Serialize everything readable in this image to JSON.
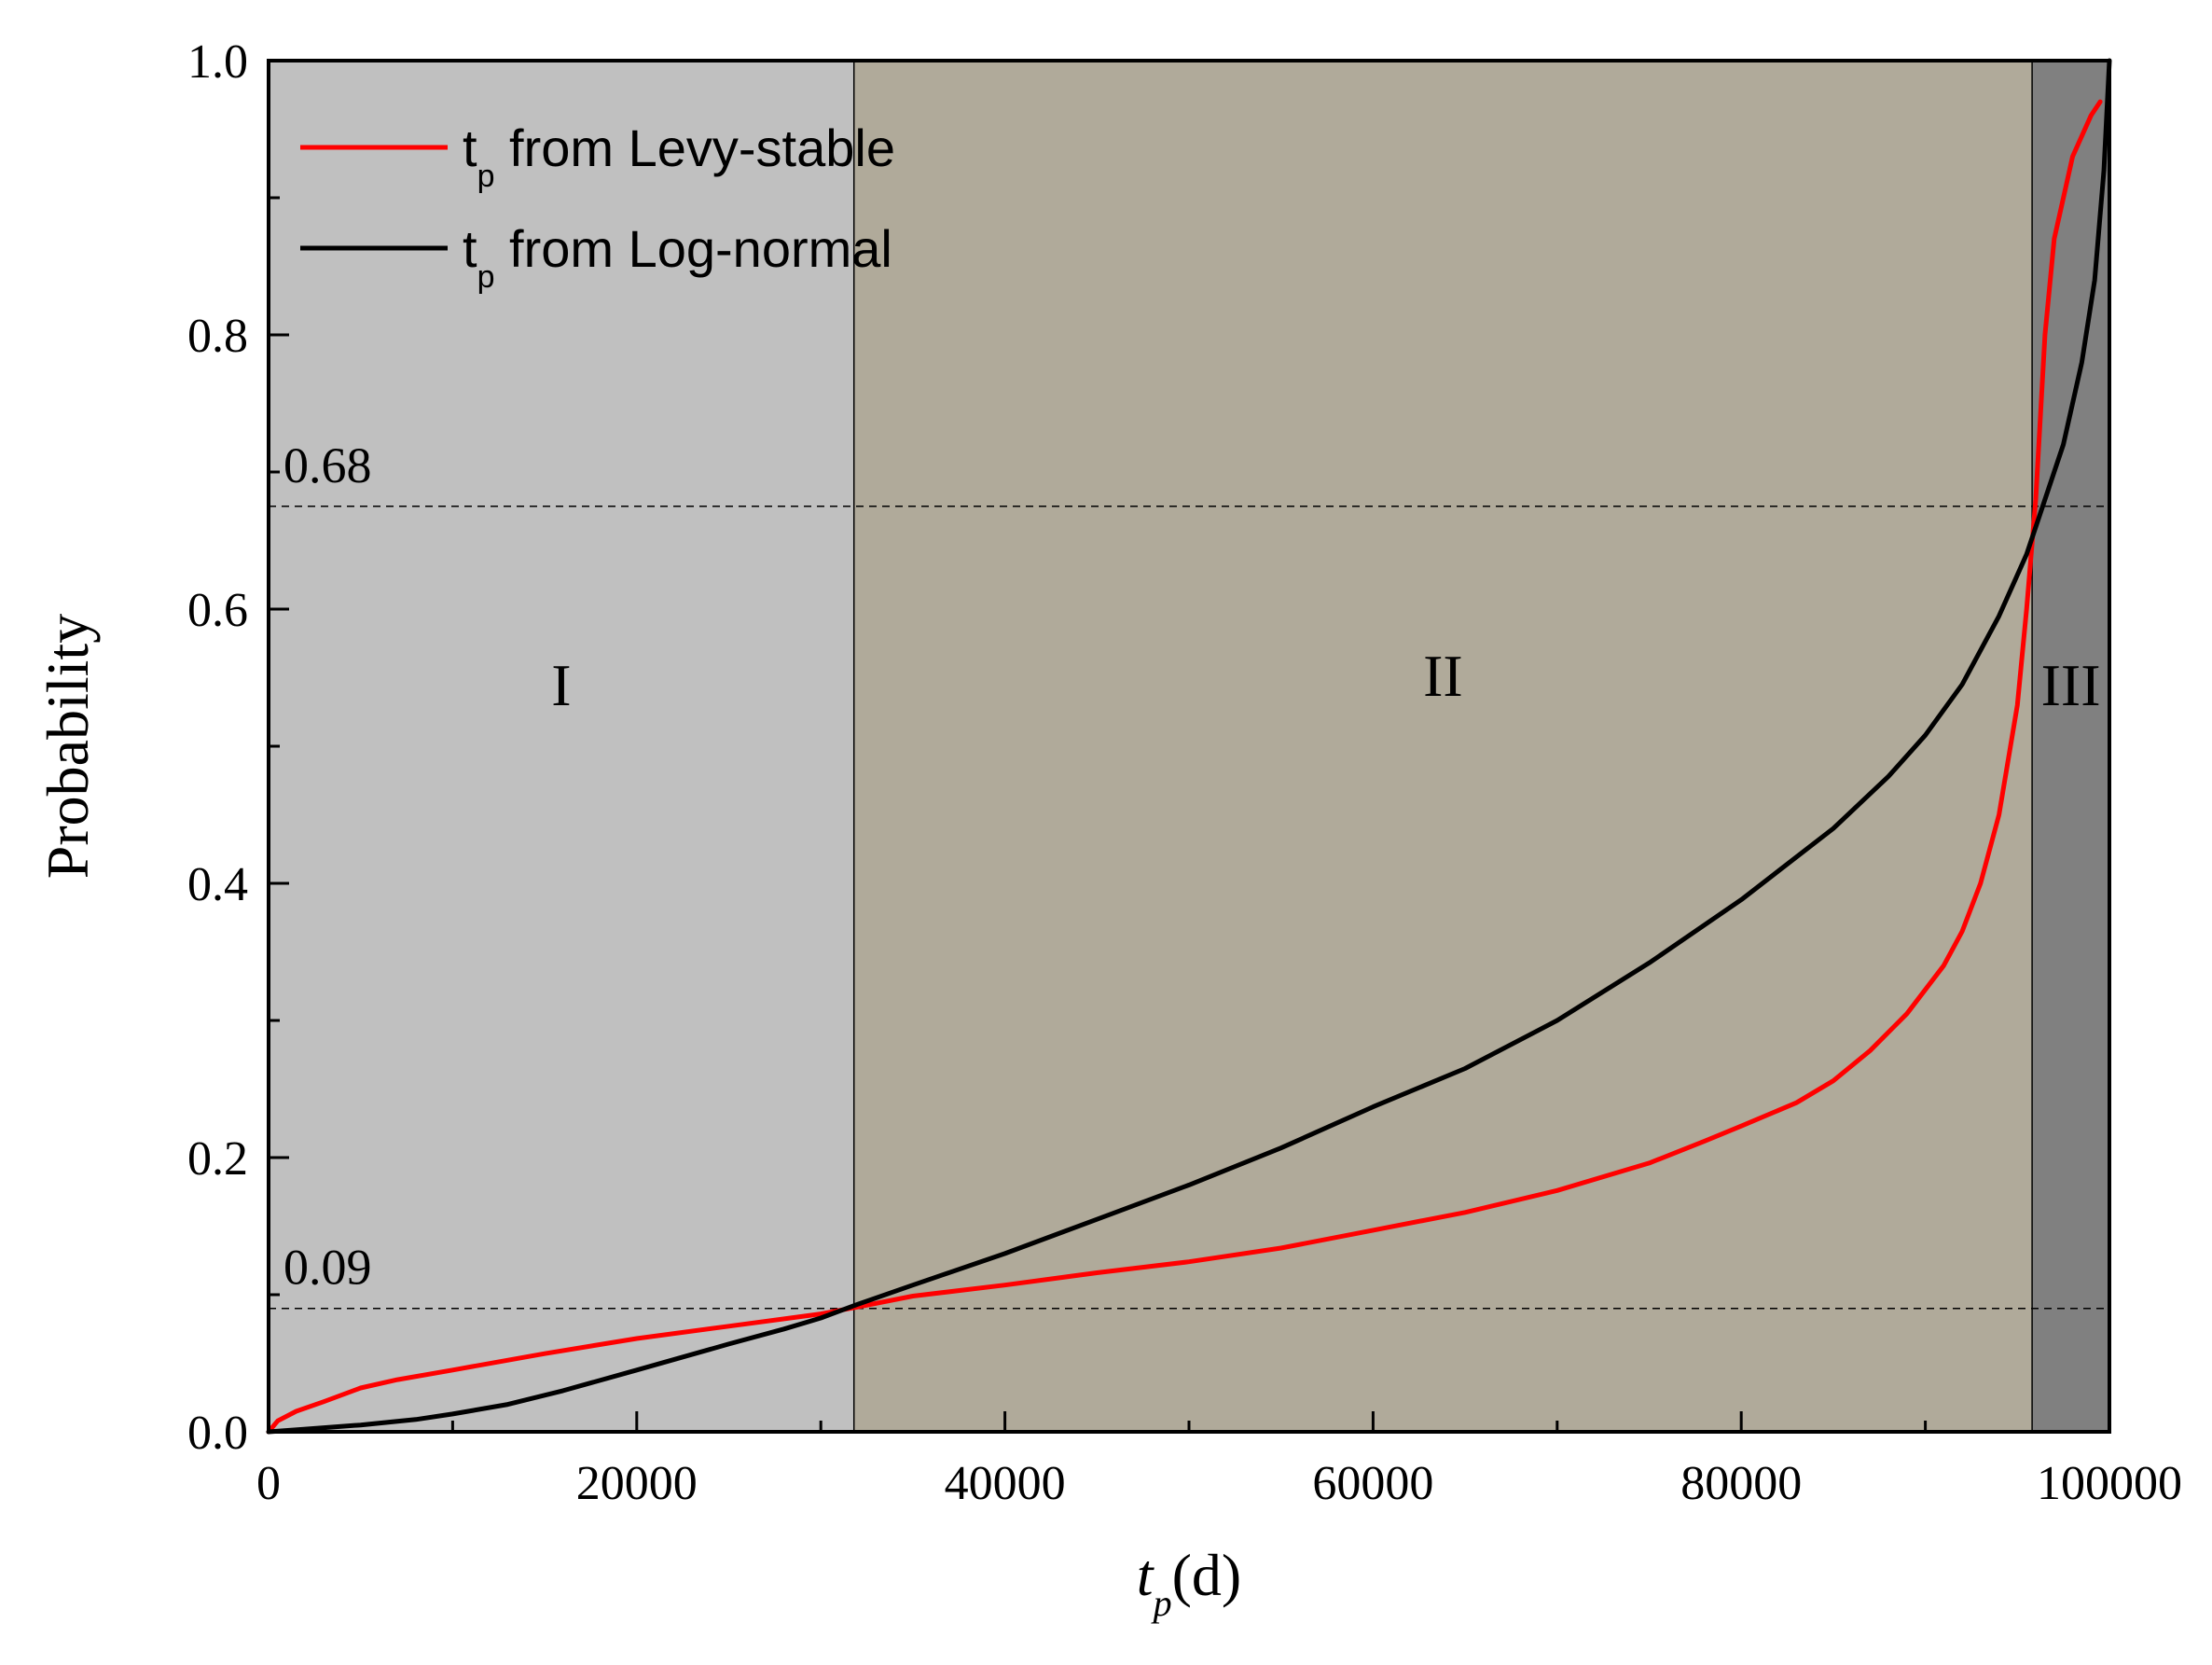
{
  "chart_data": {
    "type": "line",
    "xlabel": {
      "main": "t",
      "sub": "p",
      "suffix": "(d)"
    },
    "ylabel": "Probability",
    "xlim": [
      0,
      100000
    ],
    "ylim": [
      0,
      1.0
    ],
    "x_ticks": [
      0,
      20000,
      40000,
      60000,
      80000,
      100000
    ],
    "x_tick_labels": [
      "0",
      "20000",
      "40000",
      "60000",
      "80000",
      "100000"
    ],
    "y_ticks": [
      0,
      0.2,
      0.4,
      0.6,
      0.8,
      1.0
    ],
    "y_tick_labels": [
      "0.0",
      "0.2",
      "0.4",
      "0.6",
      "0.8",
      "1.0"
    ],
    "grid": false,
    "legend_position": "top-left",
    "regions": [
      {
        "label": "I",
        "x_start": 0,
        "x_end": 31800,
        "color": "#c0c0c0"
      },
      {
        "label": "II",
        "x_start": 31800,
        "x_end": 95800,
        "color": "#b0aa9a"
      },
      {
        "label": "III",
        "x_start": 95800,
        "x_end": 100000,
        "color": "#808080"
      }
    ],
    "reference_lines": [
      {
        "label": "0.68",
        "y": 0.675
      },
      {
        "label": "0.09",
        "y": 0.09
      }
    ],
    "series": [
      {
        "name": {
          "main": "t",
          "sub": "p",
          "suffix": " from Levy-stable"
        },
        "color": "#ff0000",
        "x": [
          0,
          500,
          1500,
          3000,
          5000,
          7000,
          10000,
          15000,
          20000,
          25000,
          30000,
          32000,
          35000,
          40000,
          45000,
          50000,
          55000,
          60000,
          65000,
          70000,
          75000,
          78000,
          80000,
          83000,
          85000,
          87000,
          89000,
          91000,
          92000,
          93000,
          94000,
          95000,
          95500,
          96000,
          96500,
          97000,
          98000,
          99000,
          99500
        ],
        "y": [
          0.0,
          0.008,
          0.015,
          0.022,
          0.032,
          0.038,
          0.045,
          0.057,
          0.068,
          0.077,
          0.086,
          0.091,
          0.099,
          0.107,
          0.116,
          0.124,
          0.134,
          0.147,
          0.16,
          0.176,
          0.196,
          0.212,
          0.223,
          0.24,
          0.256,
          0.278,
          0.305,
          0.34,
          0.365,
          0.4,
          0.45,
          0.53,
          0.6,
          0.68,
          0.8,
          0.87,
          0.93,
          0.96,
          0.97
        ]
      },
      {
        "name": {
          "main": "t",
          "sub": "p",
          "suffix": " from Log-normal"
        },
        "color": "#000000",
        "x": [
          0,
          2000,
          5000,
          8000,
          10000,
          13000,
          16000,
          20000,
          25000,
          28000,
          30000,
          32000,
          35000,
          40000,
          45000,
          50000,
          55000,
          60000,
          65000,
          70000,
          75000,
          80000,
          85000,
          88000,
          90000,
          92000,
          94000,
          95500,
          96500,
          97500,
          98500,
          99200,
          99700,
          100000
        ],
        "y": [
          0.0,
          0.002,
          0.005,
          0.009,
          0.013,
          0.02,
          0.03,
          0.045,
          0.064,
          0.075,
          0.083,
          0.093,
          0.107,
          0.13,
          0.155,
          0.18,
          0.207,
          0.237,
          0.265,
          0.3,
          0.342,
          0.388,
          0.44,
          0.478,
          0.508,
          0.545,
          0.595,
          0.64,
          0.68,
          0.72,
          0.78,
          0.84,
          0.92,
          1.0
        ]
      }
    ]
  }
}
